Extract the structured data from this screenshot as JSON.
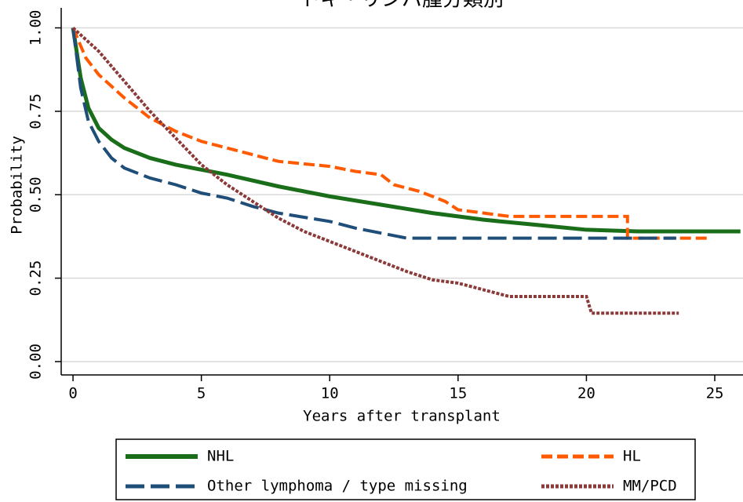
{
  "chart_data": {
    "type": "line",
    "title": "トキ・リンパ腫分類別",
    "x_label": "Years after transplant",
    "y_label": "Probability",
    "xlim": [
      -0.46,
      26.1
    ],
    "ylim": [
      -0.04,
      1.06
    ],
    "xticks": [
      0,
      5,
      10,
      15,
      20,
      25
    ],
    "yticks": [
      {
        "value": 0,
        "label": "0.00"
      },
      {
        "value": 0.25,
        "label": "0.25"
      },
      {
        "value": 0.5,
        "label": "0.50"
      },
      {
        "value": 0.75,
        "label": "0.75"
      },
      {
        "value": 1,
        "label": "1.00"
      }
    ],
    "grid": true,
    "series": [
      {
        "name": "NHL",
        "color": "#1a6e1a",
        "dash": "none",
        "width": 5,
        "x": [
          0,
          0.3,
          0.6,
          1,
          1.5,
          2,
          3,
          4,
          5,
          6,
          8,
          10,
          12,
          14,
          16,
          18,
          20,
          22,
          26
        ],
        "values": [
          1,
          0.85,
          0.76,
          0.7,
          0.665,
          0.64,
          0.61,
          0.59,
          0.575,
          0.56,
          0.525,
          0.495,
          0.47,
          0.445,
          0.425,
          0.41,
          0.395,
          0.39,
          0.39
        ]
      },
      {
        "name": "HL",
        "color": "#ff5a00",
        "dash": "14 6",
        "width": 4,
        "x": [
          0,
          0.5,
          1,
          2,
          3,
          4,
          5,
          6,
          7,
          8,
          10,
          11,
          12,
          12.5,
          13.5,
          14.5,
          15,
          17,
          21.6,
          21.6,
          24.7
        ],
        "values": [
          1,
          0.91,
          0.86,
          0.79,
          0.73,
          0.69,
          0.66,
          0.64,
          0.62,
          0.6,
          0.585,
          0.57,
          0.56,
          0.53,
          0.51,
          0.48,
          0.455,
          0.435,
          0.435,
          0.37,
          0.37
        ]
      },
      {
        "name": "Other lymphoma / type missing",
        "color": "#1f4e79",
        "dash": "24 8",
        "width": 4,
        "x": [
          0,
          0.3,
          0.6,
          1,
          1.5,
          2,
          3,
          4,
          5,
          6,
          7,
          8,
          10,
          11,
          12,
          13,
          23.5
        ],
        "values": [
          1,
          0.82,
          0.72,
          0.66,
          0.61,
          0.58,
          0.55,
          0.53,
          0.505,
          0.49,
          0.465,
          0.445,
          0.42,
          0.4,
          0.385,
          0.37,
          0.37
        ]
      },
      {
        "name": "MM/PCD",
        "color": "#8b3a3a",
        "dash": "4 2",
        "width": 4,
        "x": [
          0,
          1,
          2,
          3,
          4,
          5,
          6,
          7,
          8,
          9,
          10,
          11,
          12,
          13,
          14,
          15,
          16,
          17,
          20,
          20.2,
          23.6
        ],
        "values": [
          1,
          0.93,
          0.84,
          0.75,
          0.67,
          0.59,
          0.53,
          0.48,
          0.43,
          0.39,
          0.36,
          0.33,
          0.3,
          0.27,
          0.245,
          0.235,
          0.215,
          0.195,
          0.195,
          0.145,
          0.145
        ]
      }
    ]
  }
}
